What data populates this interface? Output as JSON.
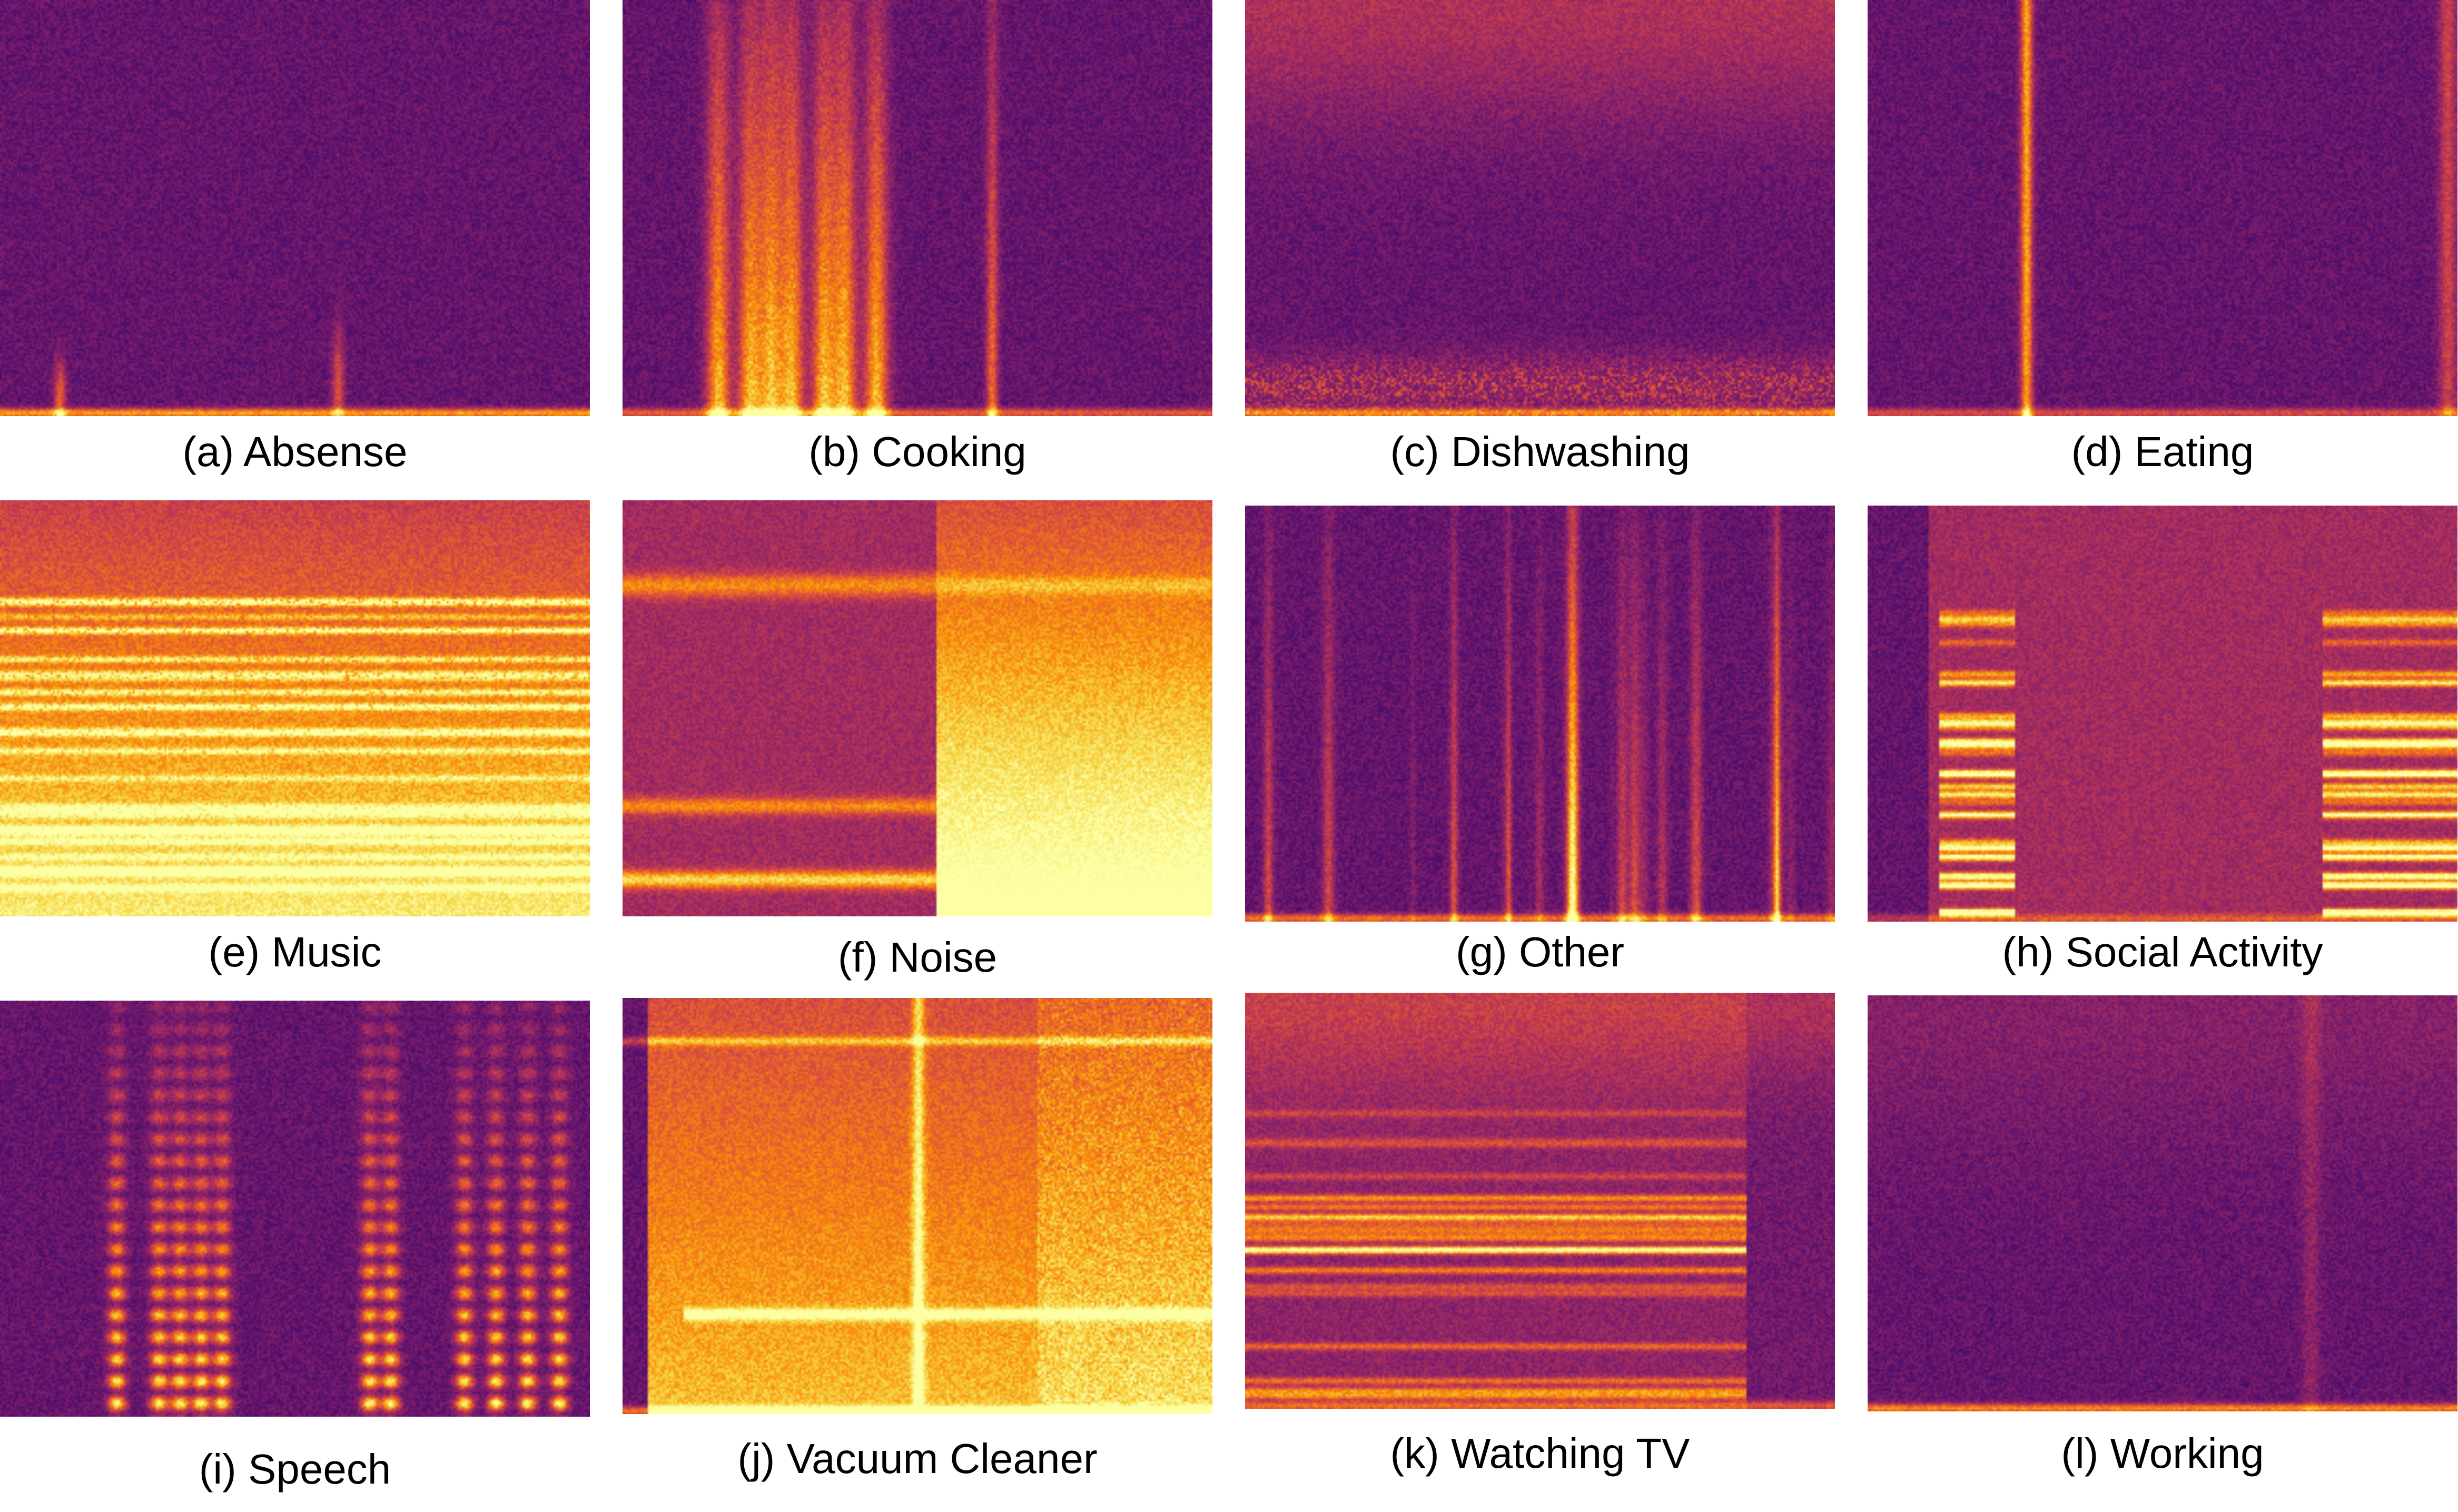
{
  "colormap": [
    "#000004",
    "#1f0c48",
    "#550f6d",
    "#88226a",
    "#ba3655",
    "#e35933",
    "#f98e09",
    "#f6d746",
    "#fcffa4"
  ],
  "panels": [
    {
      "id": "a",
      "caption": "(a) Absense"
    },
    {
      "id": "b",
      "caption": "(b) Cooking"
    },
    {
      "id": "c",
      "caption": "(c) Dishwashing"
    },
    {
      "id": "d",
      "caption": "(d) Eating"
    },
    {
      "id": "e",
      "caption": "(e) Music"
    },
    {
      "id": "f",
      "caption": "(f) Noise"
    },
    {
      "id": "g",
      "caption": "(g) Other"
    },
    {
      "id": "h",
      "caption": "(h) Social Activity"
    },
    {
      "id": "i",
      "caption": "(i) Speech"
    },
    {
      "id": "j",
      "caption": "(j) Vacuum Cleaner"
    },
    {
      "id": "k",
      "caption": "(k) Watching TV"
    },
    {
      "id": "l",
      "caption": "(l) Working"
    }
  ]
}
